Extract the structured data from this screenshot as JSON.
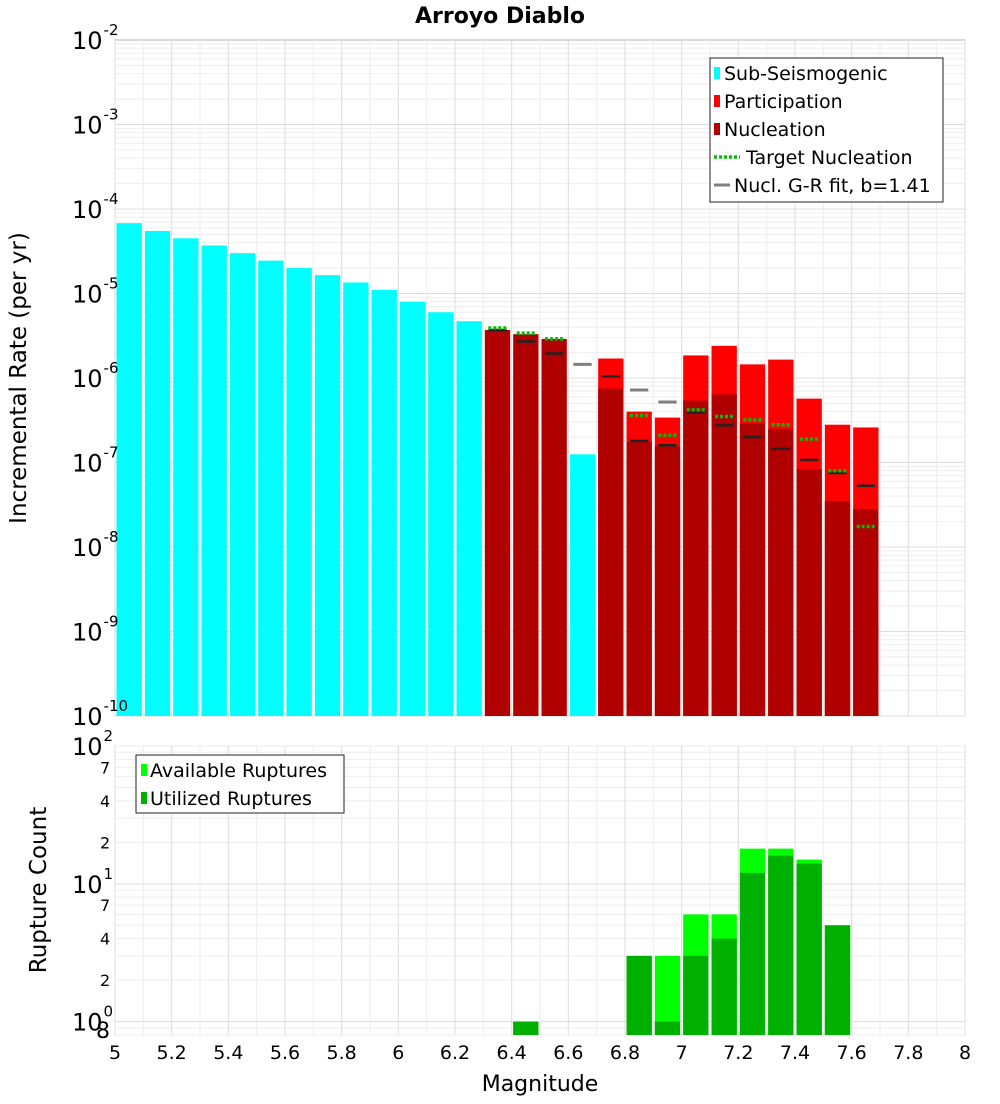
{
  "chart_data": [
    {
      "type": "bar",
      "title": "Arroyo Diablo",
      "ylabel": "Incremental Rate (per yr)",
      "yscale": "log",
      "ylim": [
        1e-10,
        0.01
      ],
      "xlim": [
        5,
        8
      ],
      "y_tick_labels": [
        {
          "value": 1e-10,
          "base": "10",
          "exp": "-10"
        },
        {
          "value": 1e-09,
          "base": "10",
          "exp": "-9"
        },
        {
          "value": 1e-08,
          "base": "10",
          "exp": "-8"
        },
        {
          "value": 1e-07,
          "base": "10",
          "exp": "-7"
        },
        {
          "value": 1e-06,
          "base": "10",
          "exp": "-6"
        },
        {
          "value": 1e-05,
          "base": "10",
          "exp": "-5"
        },
        {
          "value": 0.0001,
          "base": "10",
          "exp": "-4"
        },
        {
          "value": 0.001,
          "base": "10",
          "exp": "-3"
        },
        {
          "value": 0.01,
          "base": "10",
          "exp": "-2"
        }
      ],
      "legend": {
        "position": "top-right",
        "entries": [
          {
            "label": "Sub-Seismogenic",
            "color": "#00ffff",
            "style": "box"
          },
          {
            "label": "Participation",
            "color": "#ff0000",
            "style": "box"
          },
          {
            "label": "Nucleation",
            "color": "#b00000",
            "style": "box"
          },
          {
            "label": "Target Nucleation",
            "color": "#00c000",
            "style": "dotted"
          },
          {
            "label": "Nucl. G-R fit, b=1.41",
            "color": "#808080",
            "style": "line"
          }
        ]
      },
      "colors": {
        "sub_seismogenic": "#00ffff",
        "participation": "#ff0000",
        "nucleation": "#b00000",
        "target": "#00c000",
        "gr_fit": "#808080",
        "black_marker": "#222222"
      },
      "sub_seismogenic": {
        "x": [
          5.05,
          5.15,
          5.25,
          5.35,
          5.45,
          5.55,
          5.65,
          5.75,
          5.85,
          5.95,
          6.05,
          6.15,
          6.25,
          6.65
        ],
        "values": [
          6.8e-05,
          5.5e-05,
          4.5e-05,
          3.7e-05,
          3e-05,
          2.45e-05,
          2e-05,
          1.65e-05,
          1.35e-05,
          1.1e-05,
          8e-06,
          6e-06,
          4.7e-06,
          1.25e-07
        ]
      },
      "participation": {
        "x": [
          6.85,
          6.95,
          7.05,
          7.15,
          7.25,
          7.35,
          7.45,
          7.55,
          7.65
        ],
        "values": [
          4e-07,
          3.4e-07,
          1.85e-06,
          2.4e-06,
          1.45e-06,
          1.65e-06,
          5.7e-07,
          2.8e-07,
          2.6e-07
        ]
      },
      "nucleation": {
        "x": [
          6.35,
          6.45,
          6.55,
          6.75,
          6.85,
          6.95,
          7.05,
          7.15,
          7.25,
          7.35,
          7.45,
          7.55,
          7.65
        ],
        "values": [
          3.7e-06,
          3.3e-06,
          2.9e-06,
          7.5e-07,
          1.75e-07,
          1.55e-07,
          5.4e-07,
          6.4e-07,
          2.9e-07,
          2.5e-07,
          8.3e-08,
          3.5e-08,
          2.8e-08
        ]
      },
      "participation_extra": {
        "x": [
          6.75
        ],
        "values": [
          1.7e-06
        ]
      },
      "target_nucleation": {
        "x": [
          6.35,
          6.45,
          6.55,
          6.85,
          6.95,
          7.05,
          7.15,
          7.25,
          7.35,
          7.45,
          7.55,
          7.65
        ],
        "values": [
          3.9e-06,
          3.4e-06,
          2.9e-06,
          3.6e-07,
          2.1e-07,
          4.2e-07,
          3.5e-07,
          3.2e-07,
          2.8e-07,
          1.9e-07,
          8e-08,
          1.75e-08
        ]
      },
      "black_markers": {
        "x": [
          6.35,
          6.45,
          6.55,
          6.75,
          6.85,
          6.95,
          7.05,
          7.15,
          7.25,
          7.35,
          7.45,
          7.55,
          7.65
        ],
        "values": [
          3.7e-06,
          2.7e-06,
          1.95e-06,
          1.05e-06,
          1.8e-07,
          1.6e-07,
          3.9e-07,
          2.75e-07,
          2e-07,
          1.45e-07,
          1.07e-07,
          7.5e-08,
          5.3e-08
        ]
      },
      "gr_fit": {
        "x": [
          6.65,
          6.85,
          6.95
        ],
        "values": [
          1.45e-06,
          7.2e-07,
          5.2e-07
        ]
      }
    },
    {
      "type": "bar",
      "xlabel": "Magnitude",
      "ylabel": "Rupture Count",
      "yscale": "log",
      "ylim": [
        0.8,
        100
      ],
      "xlim": [
        5,
        8
      ],
      "x_tick_labels": [
        "5",
        "5.2",
        "5.4",
        "5.6",
        "5.8",
        "6",
        "6.2",
        "6.4",
        "6.6",
        "6.8",
        "7",
        "7.2",
        "7.4",
        "7.6",
        "7.8",
        "8"
      ],
      "y_tick_labels": [
        {
          "value": 1,
          "base": "10",
          "exp": "0"
        },
        {
          "value": 10,
          "base": "10",
          "exp": "1"
        },
        {
          "value": 100,
          "base": "10",
          "exp": "2"
        }
      ],
      "y_minor_labels": [
        {
          "value": 0.8,
          "label": "8"
        },
        {
          "value": 2,
          "label": "2"
        },
        {
          "value": 4,
          "label": "4"
        },
        {
          "value": 7,
          "label": "7"
        },
        {
          "value": 20,
          "label": "2"
        },
        {
          "value": 40,
          "label": "4"
        },
        {
          "value": 70,
          "label": "7"
        }
      ],
      "legend": {
        "position": "top-left",
        "entries": [
          {
            "label": "Available Ruptures",
            "color": "#00ff00"
          },
          {
            "label": "Utilized Ruptures",
            "color": "#00b000"
          }
        ]
      },
      "colors": {
        "available": "#00ff00",
        "utilized": "#00b000"
      },
      "available": {
        "x": [
          6.45,
          6.85,
          6.95,
          7.05,
          7.15,
          7.25,
          7.35,
          7.45,
          7.55
        ],
        "values": [
          1,
          3,
          3,
          6,
          6,
          18,
          18,
          15,
          5
        ]
      },
      "utilized": {
        "x": [
          6.45,
          6.85,
          6.95,
          7.05,
          7.15,
          7.25,
          7.35,
          7.45,
          7.55
        ],
        "values": [
          1,
          3,
          1,
          3,
          4,
          12,
          16,
          14,
          5
        ]
      }
    }
  ]
}
